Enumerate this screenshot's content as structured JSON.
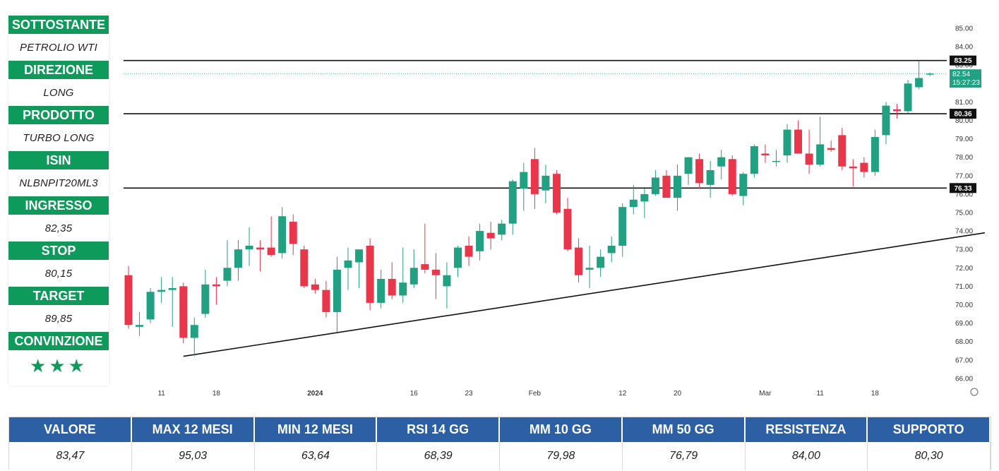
{
  "info_panel": {
    "rows": [
      {
        "label": "SOTTOSTANTE",
        "value": "PETROLIO WTI"
      },
      {
        "label": "DIREZIONE",
        "value": "LONG"
      },
      {
        "label": "PRODOTTO",
        "value": "TURBO LONG"
      },
      {
        "label": "ISIN",
        "value": "NLBNPIT20ML3"
      },
      {
        "label": "INGRESSO",
        "value": "82,35"
      },
      {
        "label": "STOP",
        "value": "80,15"
      },
      {
        "label": "TARGET",
        "value": "89,85"
      },
      {
        "label": "CONVINZIONE",
        "value": "★★★"
      }
    ],
    "colors": {
      "label_bg": "#0e9a5a",
      "star": "#0e9a5a"
    }
  },
  "stats_table": {
    "headers": [
      "VALORE",
      "MAX 12 MESI",
      "MIN 12 MESI",
      "RSI 14 GG",
      "MM 10 GG",
      "MM 50 GG",
      "RESISTENZA",
      "SUPPORTO"
    ],
    "values": [
      "83,47",
      "95,03",
      "63,64",
      "68,39",
      "79,98",
      "76,79",
      "84,00",
      "80,30"
    ],
    "colors": {
      "header_bg": "#2c5fa3"
    }
  },
  "chart_data": {
    "type": "candlestick",
    "title": "",
    "ylim": [
      66,
      85
    ],
    "y_ticks": [
      "66.00",
      "67.00",
      "68.00",
      "69.00",
      "70.00",
      "71.00",
      "72.00",
      "73.00",
      "74.00",
      "75.00",
      "76.00",
      "77.00",
      "78.00",
      "79.00",
      "80.00",
      "81.00",
      "82.00",
      "83.00",
      "84.00",
      "85.00"
    ],
    "x_ticks": [
      {
        "label": "11",
        "index": 3
      },
      {
        "label": "18",
        "index": 8
      },
      {
        "label": "2024",
        "index": 17
      },
      {
        "label": "16",
        "index": 26
      },
      {
        "label": "23",
        "index": 31
      },
      {
        "label": "Feb",
        "index": 37
      },
      {
        "label": "12",
        "index": 45
      },
      {
        "label": "20",
        "index": 50
      },
      {
        "label": "Mar",
        "index": 58
      },
      {
        "label": "11",
        "index": 63
      },
      {
        "label": "18",
        "index": 68
      }
    ],
    "colors": {
      "up": "#22a082",
      "down": "#e8364a",
      "lines": "#111111",
      "last_price": "#22a082"
    },
    "candles": [
      {
        "o": 71.6,
        "h": 72.1,
        "l": 68.7,
        "c": 68.9
      },
      {
        "o": 68.8,
        "h": 69.6,
        "l": 68.3,
        "c": 68.9
      },
      {
        "o": 69.2,
        "h": 70.9,
        "l": 69.0,
        "c": 70.7
      },
      {
        "o": 70.7,
        "h": 71.5,
        "l": 70.1,
        "c": 70.8
      },
      {
        "o": 70.8,
        "h": 71.5,
        "l": 68.8,
        "c": 70.9
      },
      {
        "o": 71.0,
        "h": 71.2,
        "l": 67.9,
        "c": 68.2
      },
      {
        "o": 68.2,
        "h": 69.3,
        "l": 67.2,
        "c": 68.9
      },
      {
        "o": 69.5,
        "h": 71.9,
        "l": 69.3,
        "c": 71.1
      },
      {
        "o": 71.1,
        "h": 71.5,
        "l": 70.0,
        "c": 71.0
      },
      {
        "o": 71.3,
        "h": 73.5,
        "l": 71.0,
        "c": 72.0
      },
      {
        "o": 72.0,
        "h": 73.5,
        "l": 71.3,
        "c": 73.0
      },
      {
        "o": 73.0,
        "h": 74.2,
        "l": 72.1,
        "c": 73.2
      },
      {
        "o": 73.1,
        "h": 73.5,
        "l": 71.8,
        "c": 73.0
      },
      {
        "o": 73.1,
        "h": 74.8,
        "l": 72.6,
        "c": 72.7
      },
      {
        "o": 72.8,
        "h": 75.3,
        "l": 72.5,
        "c": 74.8
      },
      {
        "o": 74.5,
        "h": 74.9,
        "l": 72.7,
        "c": 73.3
      },
      {
        "o": 73.0,
        "h": 73.2,
        "l": 70.9,
        "c": 71.0
      },
      {
        "o": 71.1,
        "h": 71.4,
        "l": 70.6,
        "c": 70.8
      },
      {
        "o": 70.8,
        "h": 71.3,
        "l": 69.3,
        "c": 69.6
      },
      {
        "o": 69.6,
        "h": 72.6,
        "l": 68.5,
        "c": 71.9
      },
      {
        "o": 72.0,
        "h": 73.1,
        "l": 70.8,
        "c": 72.4
      },
      {
        "o": 72.3,
        "h": 72.9,
        "l": 70.9,
        "c": 73.0
      },
      {
        "o": 73.2,
        "h": 73.6,
        "l": 69.7,
        "c": 70.1
      },
      {
        "o": 70.1,
        "h": 71.9,
        "l": 69.8,
        "c": 71.4
      },
      {
        "o": 71.4,
        "h": 72.3,
        "l": 70.3,
        "c": 70.5
      },
      {
        "o": 70.5,
        "h": 73.1,
        "l": 70.1,
        "c": 71.2
      },
      {
        "o": 71.1,
        "h": 73.0,
        "l": 70.9,
        "c": 72.0
      },
      {
        "o": 72.2,
        "h": 74.4,
        "l": 71.7,
        "c": 71.9
      },
      {
        "o": 71.9,
        "h": 72.8,
        "l": 70.3,
        "c": 71.6
      },
      {
        "o": 71.0,
        "h": 72.3,
        "l": 69.8,
        "c": 71.6
      },
      {
        "o": 72.0,
        "h": 73.2,
        "l": 71.5,
        "c": 73.1
      },
      {
        "o": 73.2,
        "h": 73.7,
        "l": 72.1,
        "c": 72.6
      },
      {
        "o": 72.9,
        "h": 74.4,
        "l": 72.4,
        "c": 74.0
      },
      {
        "o": 73.9,
        "h": 74.5,
        "l": 73.0,
        "c": 73.6
      },
      {
        "o": 73.8,
        "h": 74.6,
        "l": 73.5,
        "c": 74.4
      },
      {
        "o": 74.4,
        "h": 76.8,
        "l": 73.8,
        "c": 76.7
      },
      {
        "o": 76.3,
        "h": 77.7,
        "l": 75.1,
        "c": 77.2
      },
      {
        "o": 77.9,
        "h": 78.5,
        "l": 75.2,
        "c": 76.0
      },
      {
        "o": 76.2,
        "h": 77.6,
        "l": 75.5,
        "c": 77.0
      },
      {
        "o": 77.1,
        "h": 77.3,
        "l": 74.9,
        "c": 75.0
      },
      {
        "o": 75.2,
        "h": 75.8,
        "l": 72.9,
        "c": 73.0
      },
      {
        "o": 73.1,
        "h": 73.6,
        "l": 71.2,
        "c": 71.6
      },
      {
        "o": 71.9,
        "h": 73.2,
        "l": 70.9,
        "c": 72.0
      },
      {
        "o": 72.0,
        "h": 73.0,
        "l": 71.5,
        "c": 72.6
      },
      {
        "o": 72.8,
        "h": 73.7,
        "l": 72.3,
        "c": 73.2
      },
      {
        "o": 73.2,
        "h": 75.5,
        "l": 72.6,
        "c": 75.3
      },
      {
        "o": 75.3,
        "h": 76.5,
        "l": 74.9,
        "c": 75.7
      },
      {
        "o": 75.6,
        "h": 76.3,
        "l": 74.7,
        "c": 76.0
      },
      {
        "o": 76.0,
        "h": 77.3,
        "l": 75.9,
        "c": 76.9
      },
      {
        "o": 77.0,
        "h": 77.3,
        "l": 75.8,
        "c": 75.8
      },
      {
        "o": 75.8,
        "h": 77.6,
        "l": 75.1,
        "c": 77.0
      },
      {
        "o": 77.1,
        "h": 78.0,
        "l": 76.5,
        "c": 78.0
      },
      {
        "o": 77.9,
        "h": 78.2,
        "l": 76.3,
        "c": 76.6
      },
      {
        "o": 76.5,
        "h": 77.8,
        "l": 75.8,
        "c": 77.3
      },
      {
        "o": 77.5,
        "h": 78.4,
        "l": 76.8,
        "c": 78.0
      },
      {
        "o": 77.9,
        "h": 78.1,
        "l": 75.9,
        "c": 76.0
      },
      {
        "o": 75.9,
        "h": 77.2,
        "l": 75.4,
        "c": 77.1
      },
      {
        "o": 77.1,
        "h": 78.7,
        "l": 76.9,
        "c": 78.6
      },
      {
        "o": 78.2,
        "h": 78.7,
        "l": 77.7,
        "c": 78.1
      },
      {
        "o": 77.8,
        "h": 78.4,
        "l": 77.5,
        "c": 77.8
      },
      {
        "o": 78.1,
        "h": 79.8,
        "l": 77.7,
        "c": 79.5
      },
      {
        "o": 79.5,
        "h": 80.0,
        "l": 78.2,
        "c": 78.2
      },
      {
        "o": 78.2,
        "h": 79.5,
        "l": 77.1,
        "c": 77.6
      },
      {
        "o": 77.6,
        "h": 80.2,
        "l": 77.5,
        "c": 78.7
      },
      {
        "o": 78.5,
        "h": 78.9,
        "l": 78.3,
        "c": 78.4
      },
      {
        "o": 79.2,
        "h": 79.6,
        "l": 77.3,
        "c": 77.5
      },
      {
        "o": 77.5,
        "h": 77.9,
        "l": 76.4,
        "c": 77.4
      },
      {
        "o": 77.7,
        "h": 78.0,
        "l": 76.9,
        "c": 77.2
      },
      {
        "o": 77.2,
        "h": 79.5,
        "l": 77.0,
        "c": 79.1
      },
      {
        "o": 79.2,
        "h": 81.0,
        "l": 78.7,
        "c": 80.8
      },
      {
        "o": 80.6,
        "h": 80.9,
        "l": 80.1,
        "c": 80.5
      },
      {
        "o": 80.5,
        "h": 82.2,
        "l": 80.4,
        "c": 82.0
      },
      {
        "o": 81.8,
        "h": 83.2,
        "l": 81.7,
        "c": 82.3
      },
      {
        "o": 82.5,
        "h": 82.6,
        "l": 82.4,
        "c": 82.54
      }
    ],
    "horizontal_lines": [
      83.25,
      80.36,
      76.33
    ],
    "trendline": {
      "from_index": 5,
      "from_value": 67.2,
      "to_index": 78,
      "to_value": 73.9
    },
    "price_labels": [
      "83.25",
      "80.36",
      "76.33"
    ],
    "last_price": {
      "value": 82.54,
      "label": "82.54",
      "countdown": "15:27:23"
    }
  }
}
